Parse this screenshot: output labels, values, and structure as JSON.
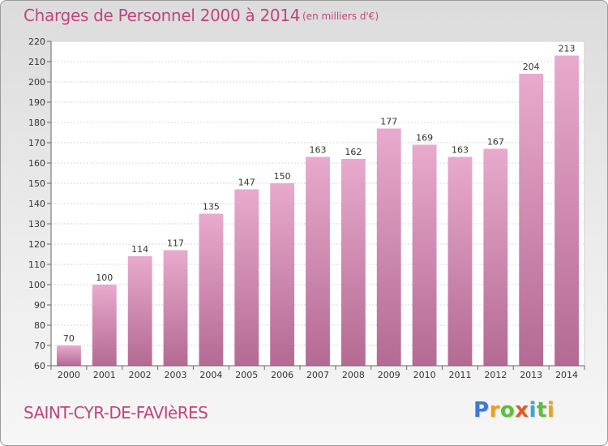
{
  "header": {
    "title": "Charges de Personnel 2000 à 2014",
    "subtitle": "(en milliers d'€)"
  },
  "footer": {
    "commune": "SAINT-CYR-DE-FAVIèRES",
    "logo": [
      "P",
      "r",
      "o",
      "x",
      "i",
      "t",
      "i"
    ],
    "logo_colors": [
      "#3a7bd5",
      "#e8a21a",
      "#5bbf3a",
      "#e05a2a",
      "#3aa7d5",
      "#5bbf3a",
      "#e8a21a"
    ]
  },
  "colors": {
    "bar_light": "#e8aacd",
    "bar_dark": "#b46a93",
    "plot_bg": "#ffffff",
    "accent": "#c0457b"
  },
  "chart_data": {
    "type": "bar",
    "title": "Charges de Personnel 2000 à 2014",
    "subtitle": "(en milliers d'€)",
    "categories": [
      "2000",
      "2001",
      "2002",
      "2003",
      "2004",
      "2005",
      "2006",
      "2007",
      "2008",
      "2009",
      "2010",
      "2011",
      "2012",
      "2013",
      "2014"
    ],
    "values": [
      70,
      100,
      114,
      117,
      135,
      147,
      150,
      163,
      162,
      177,
      169,
      163,
      167,
      204,
      213
    ],
    "ylim": [
      60,
      220
    ],
    "yticks": [
      60,
      70,
      80,
      90,
      100,
      110,
      120,
      130,
      140,
      150,
      160,
      170,
      180,
      190,
      200,
      210,
      220
    ],
    "grid": true,
    "legend": "none"
  }
}
